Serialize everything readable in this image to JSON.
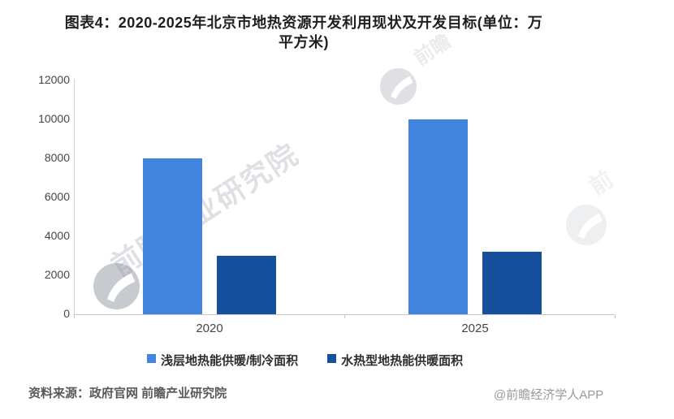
{
  "title": {
    "line1": "图表4：2020-2025年北京市地热资源开发利用现状及开发目标(单位：万",
    "line2": "平方米)"
  },
  "chart_data": {
    "type": "bar",
    "title": "图表4：2020-2025年北京市地热资源开发利用现状及开发目标(单位：万平方米)",
    "unit": "万平方米",
    "categories": [
      "2020",
      "2025"
    ],
    "series": [
      {
        "name": "浅层地热能供暖/制冷面积",
        "color": "#4285DE",
        "values": [
          8000,
          10000
        ]
      },
      {
        "name": "水热型地热能供暖面积",
        "color": "#164F9C",
        "values": [
          3000,
          3200
        ]
      }
    ],
    "ylim": [
      0,
      12000
    ],
    "yticks": [
      0,
      2000,
      4000,
      6000,
      8000,
      10000,
      12000
    ],
    "grid": false,
    "legend_position": "bottom"
  },
  "watermark": {
    "logo_text": "前瞻产业研究院",
    "top_fragment": "前瞻",
    "right_fragment": "前"
  },
  "footer": {
    "source": "资料来源：政府官网 前瞻产业研究院",
    "credit": "@前瞻经济学人APP"
  }
}
